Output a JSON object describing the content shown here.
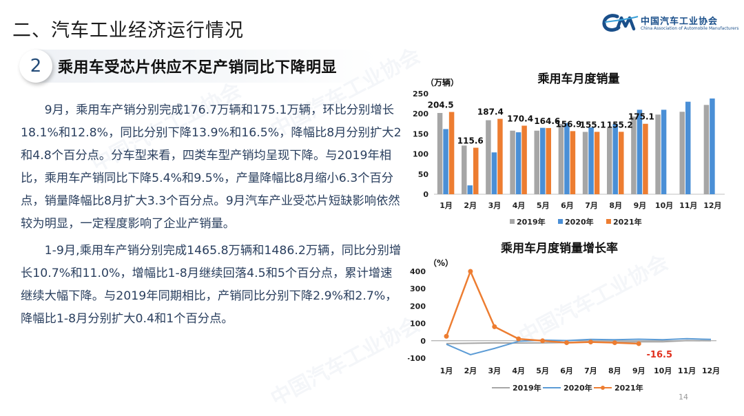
{
  "slide": {
    "title": "二、汽车工业经济运行情况",
    "section_number": "2",
    "section_heading": "乘用车受芯片供应不足产销同比下降明显",
    "page_number": "14"
  },
  "logo": {
    "name_cn": "中国汽车工业协会",
    "name_en": "China Association of Automobile Manufacturers",
    "mark_text": "CM",
    "watermark_text": "中国汽车工业协会"
  },
  "body": {
    "paragraph1": "9月，乘用车产销分别完成176.7万辆和175.1万辆，环比分别增长18.1%和12.8%，同比分别下降13.9%和16.5%，降幅比8月分别扩大2和4.8个百分点。分车型来看，四类车型产销均呈现下降。与2019年相比，乘用车产销同比下降5.4%和9.5%，产量降幅比8月缩小6.3个百分点，销量降幅比8月扩大3.3个百分点。9月汽车产业受芯片短缺影响依然较为明显，一定程度影响了企业产销量。",
    "paragraph2": "1-9月,乘用车产销分别完成1465.8万辆和1486.2万辆，同比分别增长10.7%和11.0%，增幅比1-8月继续回落4.5和5个百分点，累计增速继续大幅下降。与2019年同期相比，产销同比分别下降2.9%和2.7%，降幅比1-8月分别扩大0.4和1个百分点。"
  },
  "chart_data": [
    {
      "type": "bar",
      "title": "乘用车月度销量",
      "ylabel": "（万辆）",
      "ylim": [
        0,
        250
      ],
      "yticks": [
        0,
        50,
        100,
        150,
        200,
        250
      ],
      "categories": [
        "1月",
        "2月",
        "3月",
        "4月",
        "5月",
        "6月",
        "7月",
        "8月",
        "9月",
        "10月",
        "11月",
        "12月"
      ],
      "series": [
        {
          "name": "2019年",
          "color": "#a6a6a6",
          "values": [
            202,
            121,
            184,
            158,
            158,
            175,
            155,
            165,
            193,
            198,
            205,
            222
          ]
        },
        {
          "name": "2020年",
          "color": "#4a8fd6",
          "values": [
            162,
            22,
            104,
            154,
            165,
            177,
            166,
            175,
            210,
            210,
            230,
            238
          ]
        },
        {
          "name": "2021年",
          "color": "#ed7d31",
          "values": [
            204.5,
            115.6,
            187.4,
            170.4,
            164.6,
            156.9,
            155.1,
            155.2,
            175.1,
            null,
            null,
            null
          ]
        }
      ],
      "data_labels": [
        "204.5",
        "115.6",
        "187.4",
        "170.4",
        "164.6",
        "156.9",
        "155.1",
        "155.2",
        "175.1"
      ],
      "legend": "bottom"
    },
    {
      "type": "line",
      "title": "乘用车月度销量增长率",
      "ylabel": "（%）",
      "ylim": [
        -100,
        400
      ],
      "yticks": [
        -100,
        0,
        100,
        200,
        300,
        400
      ],
      "categories": [
        "1月",
        "2月",
        "3月",
        "4月",
        "5月",
        "6月",
        "7月",
        "8月",
        "9月",
        "10月",
        "11月",
        "12月"
      ],
      "series": [
        {
          "name": "2019年",
          "color": "#a6a6a6",
          "values": [
            -16,
            -14,
            -12,
            -13,
            -12,
            -10,
            -5,
            -7,
            -6,
            -6,
            1,
            0
          ]
        },
        {
          "name": "2020年",
          "color": "#5b9bd5",
          "values": [
            -20,
            -80,
            -44,
            -3,
            4,
            1,
            8,
            6,
            9,
            6,
            12,
            8
          ]
        },
        {
          "name": "2021年",
          "color": "#ed7d31",
          "values": [
            26,
            400,
            81,
            11,
            0,
            -11,
            -7,
            -11,
            -16.5,
            null,
            null,
            null
          ]
        }
      ],
      "data_labels": [
        "-16.5"
      ],
      "legend": "bottom"
    }
  ]
}
